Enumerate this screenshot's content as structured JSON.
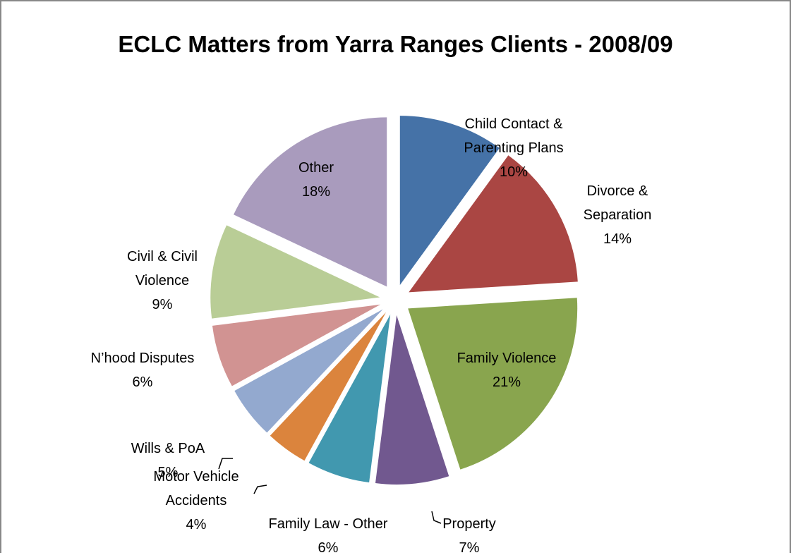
{
  "chart_data": {
    "type": "pie",
    "title": "ECLC Matters from Yarra Ranges Clients - 2008/09",
    "categories": [
      "Child Contact & Parenting Plans",
      "Divorce & Separation",
      "Family Violence",
      "Property",
      "Family Law - Other",
      "Motor Vehicle Accidents",
      "Wills & PoA",
      "N’hood Disputes",
      "Civil & Civil Violence",
      "Other"
    ],
    "values": [
      10,
      14,
      21,
      7,
      6,
      4,
      5,
      6,
      9,
      18
    ],
    "value_labels": [
      "10%",
      "14%",
      "21%",
      "7%",
      "6%",
      "4%",
      "5%",
      "6%",
      "9%",
      "18%"
    ],
    "colors": [
      "#4572a7",
      "#aa4643",
      "#89a54e",
      "#71588f",
      "#4198af",
      "#db843d",
      "#93a9cf",
      "#d19392",
      "#b9cd96",
      "#a99bbd"
    ]
  }
}
